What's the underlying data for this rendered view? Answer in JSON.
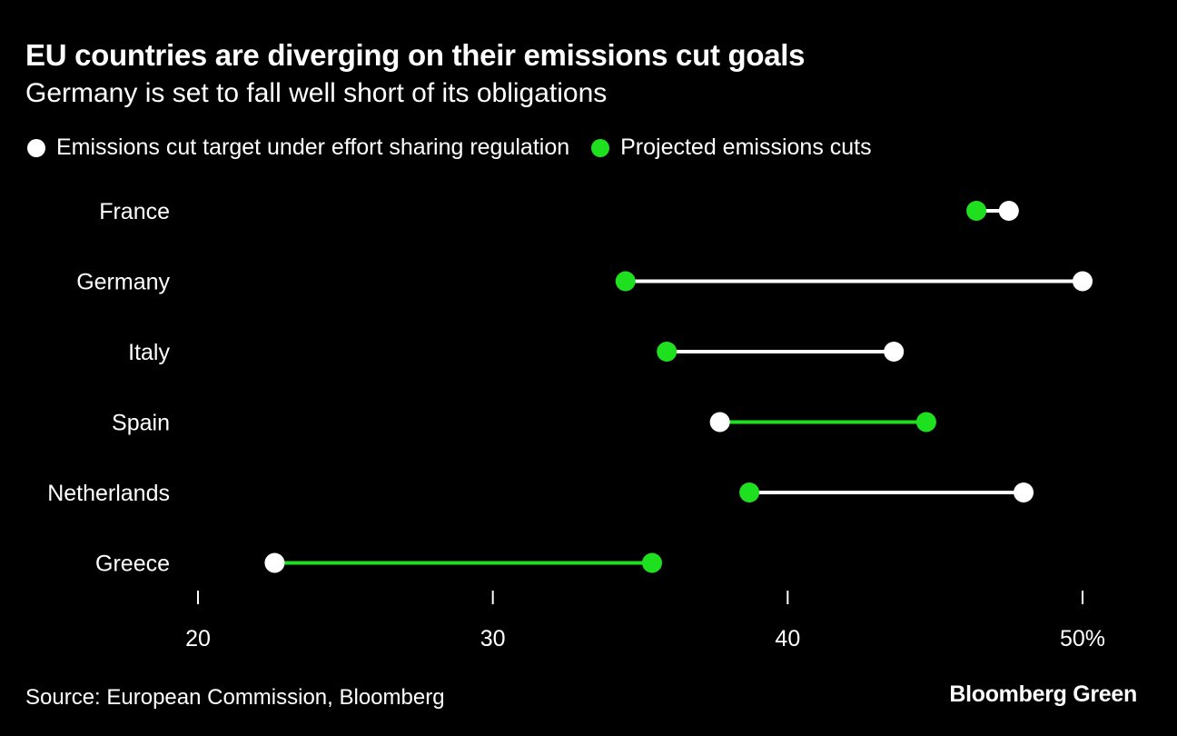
{
  "title": "EU countries are diverging on their emissions cut goals",
  "subtitle": "Germany is set to fall well short of its obligations",
  "legend": {
    "target": "Emissions cut target under effort sharing regulation",
    "projected": "Projected emissions cuts"
  },
  "colors": {
    "target": "#ffffff",
    "projected": "#1ee01e",
    "background": "#000000"
  },
  "source": "Source: European Commission, Bloomberg",
  "brand": "Bloomberg Green",
  "chart_data": {
    "type": "dumbbell",
    "categories": [
      "France",
      "Germany",
      "Italy",
      "Spain",
      "Netherlands",
      "Greece"
    ],
    "series": [
      {
        "name": "Emissions cut target under effort sharing regulation",
        "values": [
          47.5,
          50,
          43.6,
          37.7,
          48,
          22.6
        ]
      },
      {
        "name": "Projected emissions cuts",
        "values": [
          46.4,
          34.5,
          35.9,
          44.7,
          38.7,
          35.4
        ]
      }
    ],
    "xticks": [
      "20",
      "30",
      "40",
      "50%"
    ],
    "xtick_values": [
      20,
      30,
      40,
      50
    ],
    "xlim": [
      20,
      50
    ]
  }
}
